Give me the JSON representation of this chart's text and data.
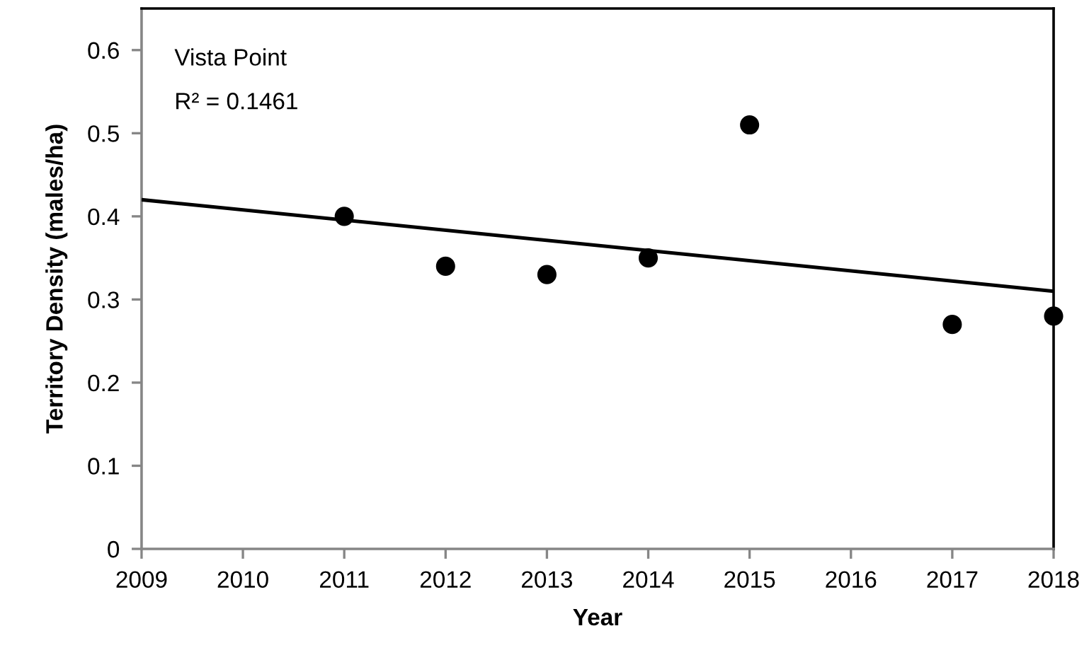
{
  "chart_data": {
    "type": "scatter",
    "xlabel": "Year",
    "ylabel": "Territory Density (males/ha)",
    "annotations": [
      "Vista Point",
      "R² = 0.1461"
    ],
    "x": [
      2011,
      2012,
      2013,
      2014,
      2015,
      2017,
      2018
    ],
    "series": [
      {
        "color": "#000000",
        "marker": "circle",
        "values": [
          0.4,
          0.34,
          0.33,
          0.35,
          0.51,
          0.27,
          0.28
        ]
      },
      {
        "type": "line",
        "x": [
          2009,
          2018
        ],
        "values": [
          0.42,
          0.31
        ],
        "color": "#000000",
        "marker": "none",
        "line_style": "solid"
      }
    ],
    "xlim": [
      2009,
      2018
    ],
    "xticks": [
      2009,
      2010,
      2011,
      2012,
      2013,
      2014,
      2015,
      2016,
      2017,
      2018
    ],
    "ylim": [
      0,
      0.65
    ],
    "yticks": [
      0,
      0.1,
      0.2,
      0.3,
      0.4,
      0.5,
      0.6
    ],
    "grid": false
  }
}
